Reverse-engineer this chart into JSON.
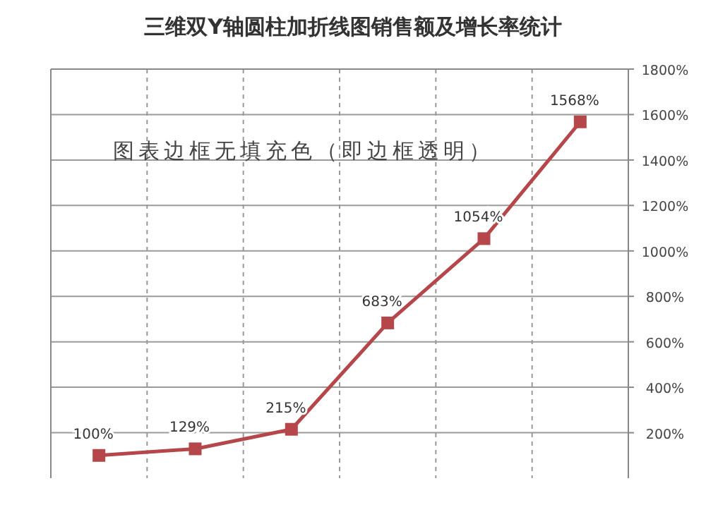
{
  "chart_data": {
    "type": "line",
    "title": "三维双Y轴圆柱加折线图销售额及增长率统计",
    "annotations": [
      "图表边框无填充色（即边框透明）"
    ],
    "categories": [
      null,
      null,
      null,
      null,
      null,
      null
    ],
    "values": [
      100,
      129,
      215,
      683,
      1054,
      1568
    ],
    "value_labels": [
      "100%",
      "129%",
      "215%",
      "683%",
      "1054%",
      "1568%"
    ],
    "color": "#b5474b",
    "marker": "square",
    "grid": true,
    "ylim": [
      0,
      1800
    ],
    "yticks": [
      {
        "value": 200,
        "label": "200%"
      },
      {
        "value": 400,
        "label": "400%"
      },
      {
        "value": 600,
        "label": "600%"
      },
      {
        "value": 800,
        "label": "800%"
      },
      {
        "value": 1000,
        "label": "1000%"
      },
      {
        "value": 1200,
        "label": "1200%"
      },
      {
        "value": 1400,
        "label": "1400%"
      },
      {
        "value": 1600,
        "label": "1600%"
      },
      {
        "value": 1800,
        "label": "1800%"
      }
    ]
  }
}
